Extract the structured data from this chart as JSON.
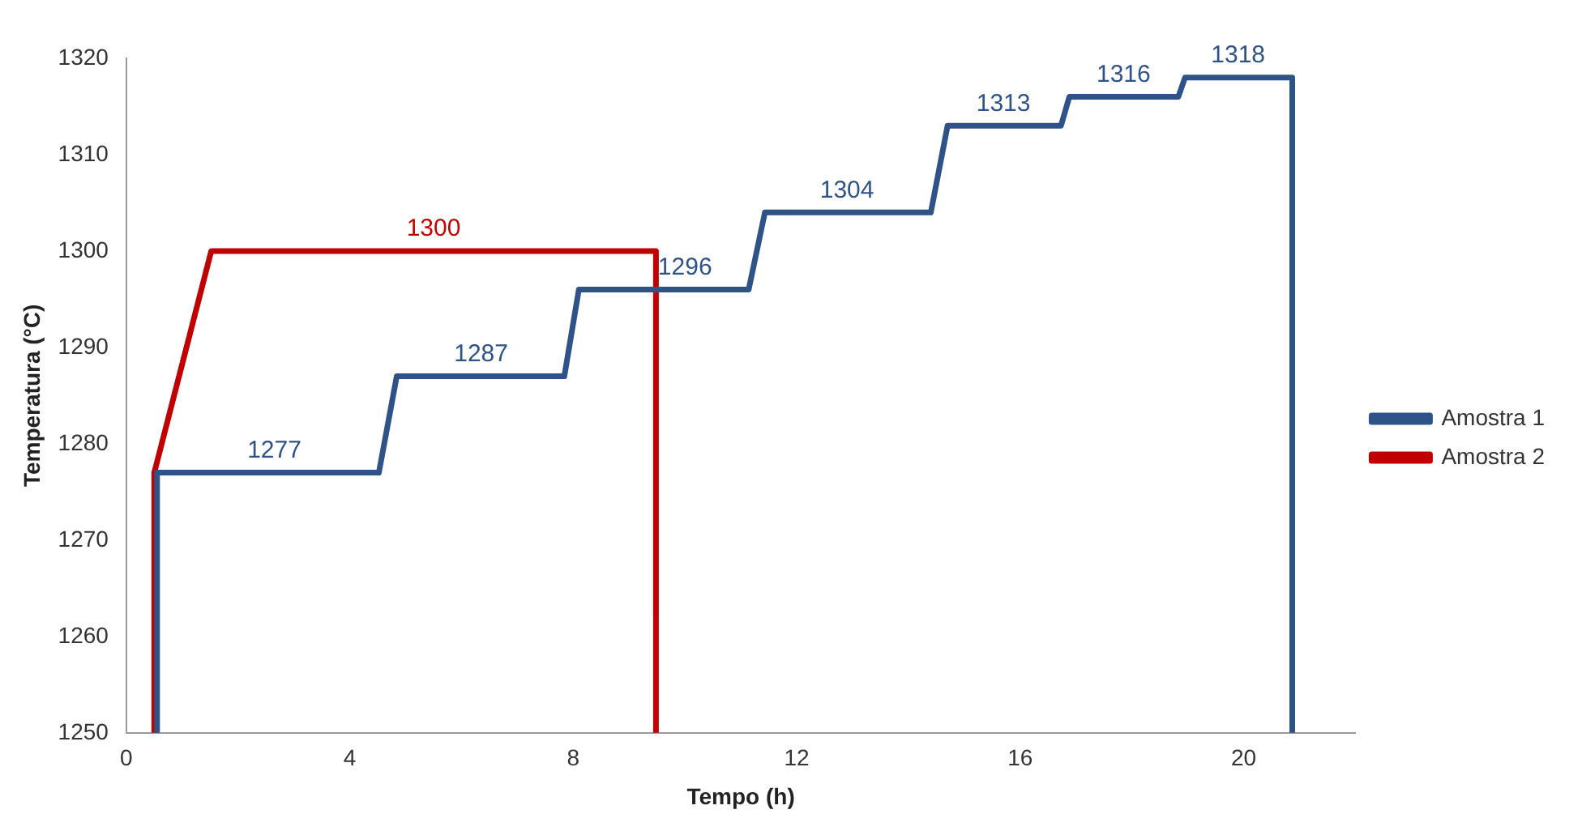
{
  "chart_data": {
    "type": "line",
    "xlabel": "Tempo (h)",
    "ylabel": "Temperatura (°C)",
    "xlim": [
      0,
      22
    ],
    "xticks": [
      0,
      4,
      8,
      12,
      16,
      20
    ],
    "ylim": [
      1250,
      1320
    ],
    "yticks": [
      1250,
      1260,
      1270,
      1280,
      1290,
      1300,
      1310,
      1320
    ],
    "grid": false,
    "legend": "right",
    "marker": "none",
    "line_style": "solid",
    "series": [
      {
        "name": "Amostra 1",
        "color": "#2f5287",
        "x": [
          0.55,
          0.55,
          4.52,
          4.84,
          7.84,
          8.1,
          11.14,
          11.43,
          14.4,
          14.7,
          16.73,
          16.88,
          18.83,
          18.95,
          20.87,
          20.87
        ],
        "values": [
          1250,
          1277,
          1277,
          1287,
          1287,
          1296,
          1296,
          1304,
          1304,
          1313,
          1313,
          1316,
          1316,
          1318,
          1318,
          1250
        ]
      },
      {
        "name": "Amostra 2",
        "color": "#c00000",
        "x": [
          0.5,
          0.5,
          1.52,
          9.48,
          9.48
        ],
        "values": [
          1250,
          1277,
          1300,
          1300,
          1250
        ]
      }
    ],
    "annotations": [
      {
        "text": "1277",
        "x": 2.65,
        "y": 1277
      },
      {
        "text": "1287",
        "x": 6.35,
        "y": 1287
      },
      {
        "text": "1296",
        "x": 10.0,
        "y": 1296
      },
      {
        "text": "1304",
        "x": 12.9,
        "y": 1304
      },
      {
        "text": "1313",
        "x": 15.7,
        "y": 1313
      },
      {
        "text": "1316",
        "x": 17.85,
        "y": 1316
      },
      {
        "text": "1318",
        "x": 19.9,
        "y": 1318
      },
      {
        "text": "1300",
        "x": 5.5,
        "y": 1300
      }
    ]
  }
}
